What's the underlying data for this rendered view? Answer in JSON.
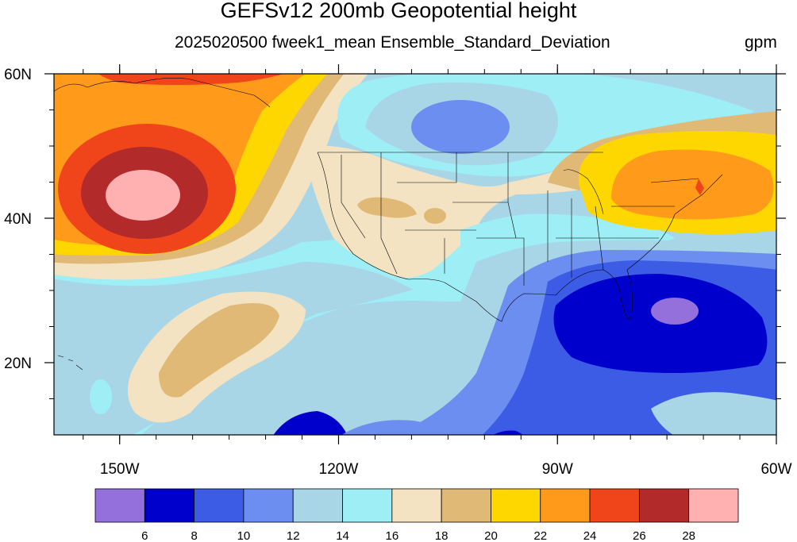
{
  "header": {
    "title": "GEFSv12 200mb Geopotential height",
    "subtitle": "2025020500 fweek1_mean Ensemble_Standard_Deviation",
    "units": "gpm"
  },
  "map": {
    "lon_ticks": [
      {
        "value": -150,
        "label": "150W"
      },
      {
        "value": -120,
        "label": "120W"
      },
      {
        "value": -90,
        "label": "90W"
      },
      {
        "value": -60,
        "label": "60W"
      }
    ],
    "lat_ticks": [
      {
        "value": 60,
        "label": "60N"
      },
      {
        "value": 40,
        "label": "40N"
      },
      {
        "value": 20,
        "label": "20N"
      }
    ],
    "extent": {
      "lon_min": -159,
      "lon_max": -60,
      "lat_min": 10,
      "lat_max": 60
    }
  },
  "colorbar": {
    "colors": [
      "#9370db",
      "#0000cd",
      "#3c5ce6",
      "#6b8ef0",
      "#a8d6e6",
      "#9eeef5",
      "#f3e3c3",
      "#e1b977",
      "#ffd700",
      "#ff9a1a",
      "#f0441a",
      "#b22a2a",
      "#ffb0b0"
    ],
    "labels": [
      "6",
      "8",
      "10",
      "12",
      "14",
      "16",
      "18",
      "20",
      "22",
      "24",
      "26",
      "28"
    ]
  }
}
